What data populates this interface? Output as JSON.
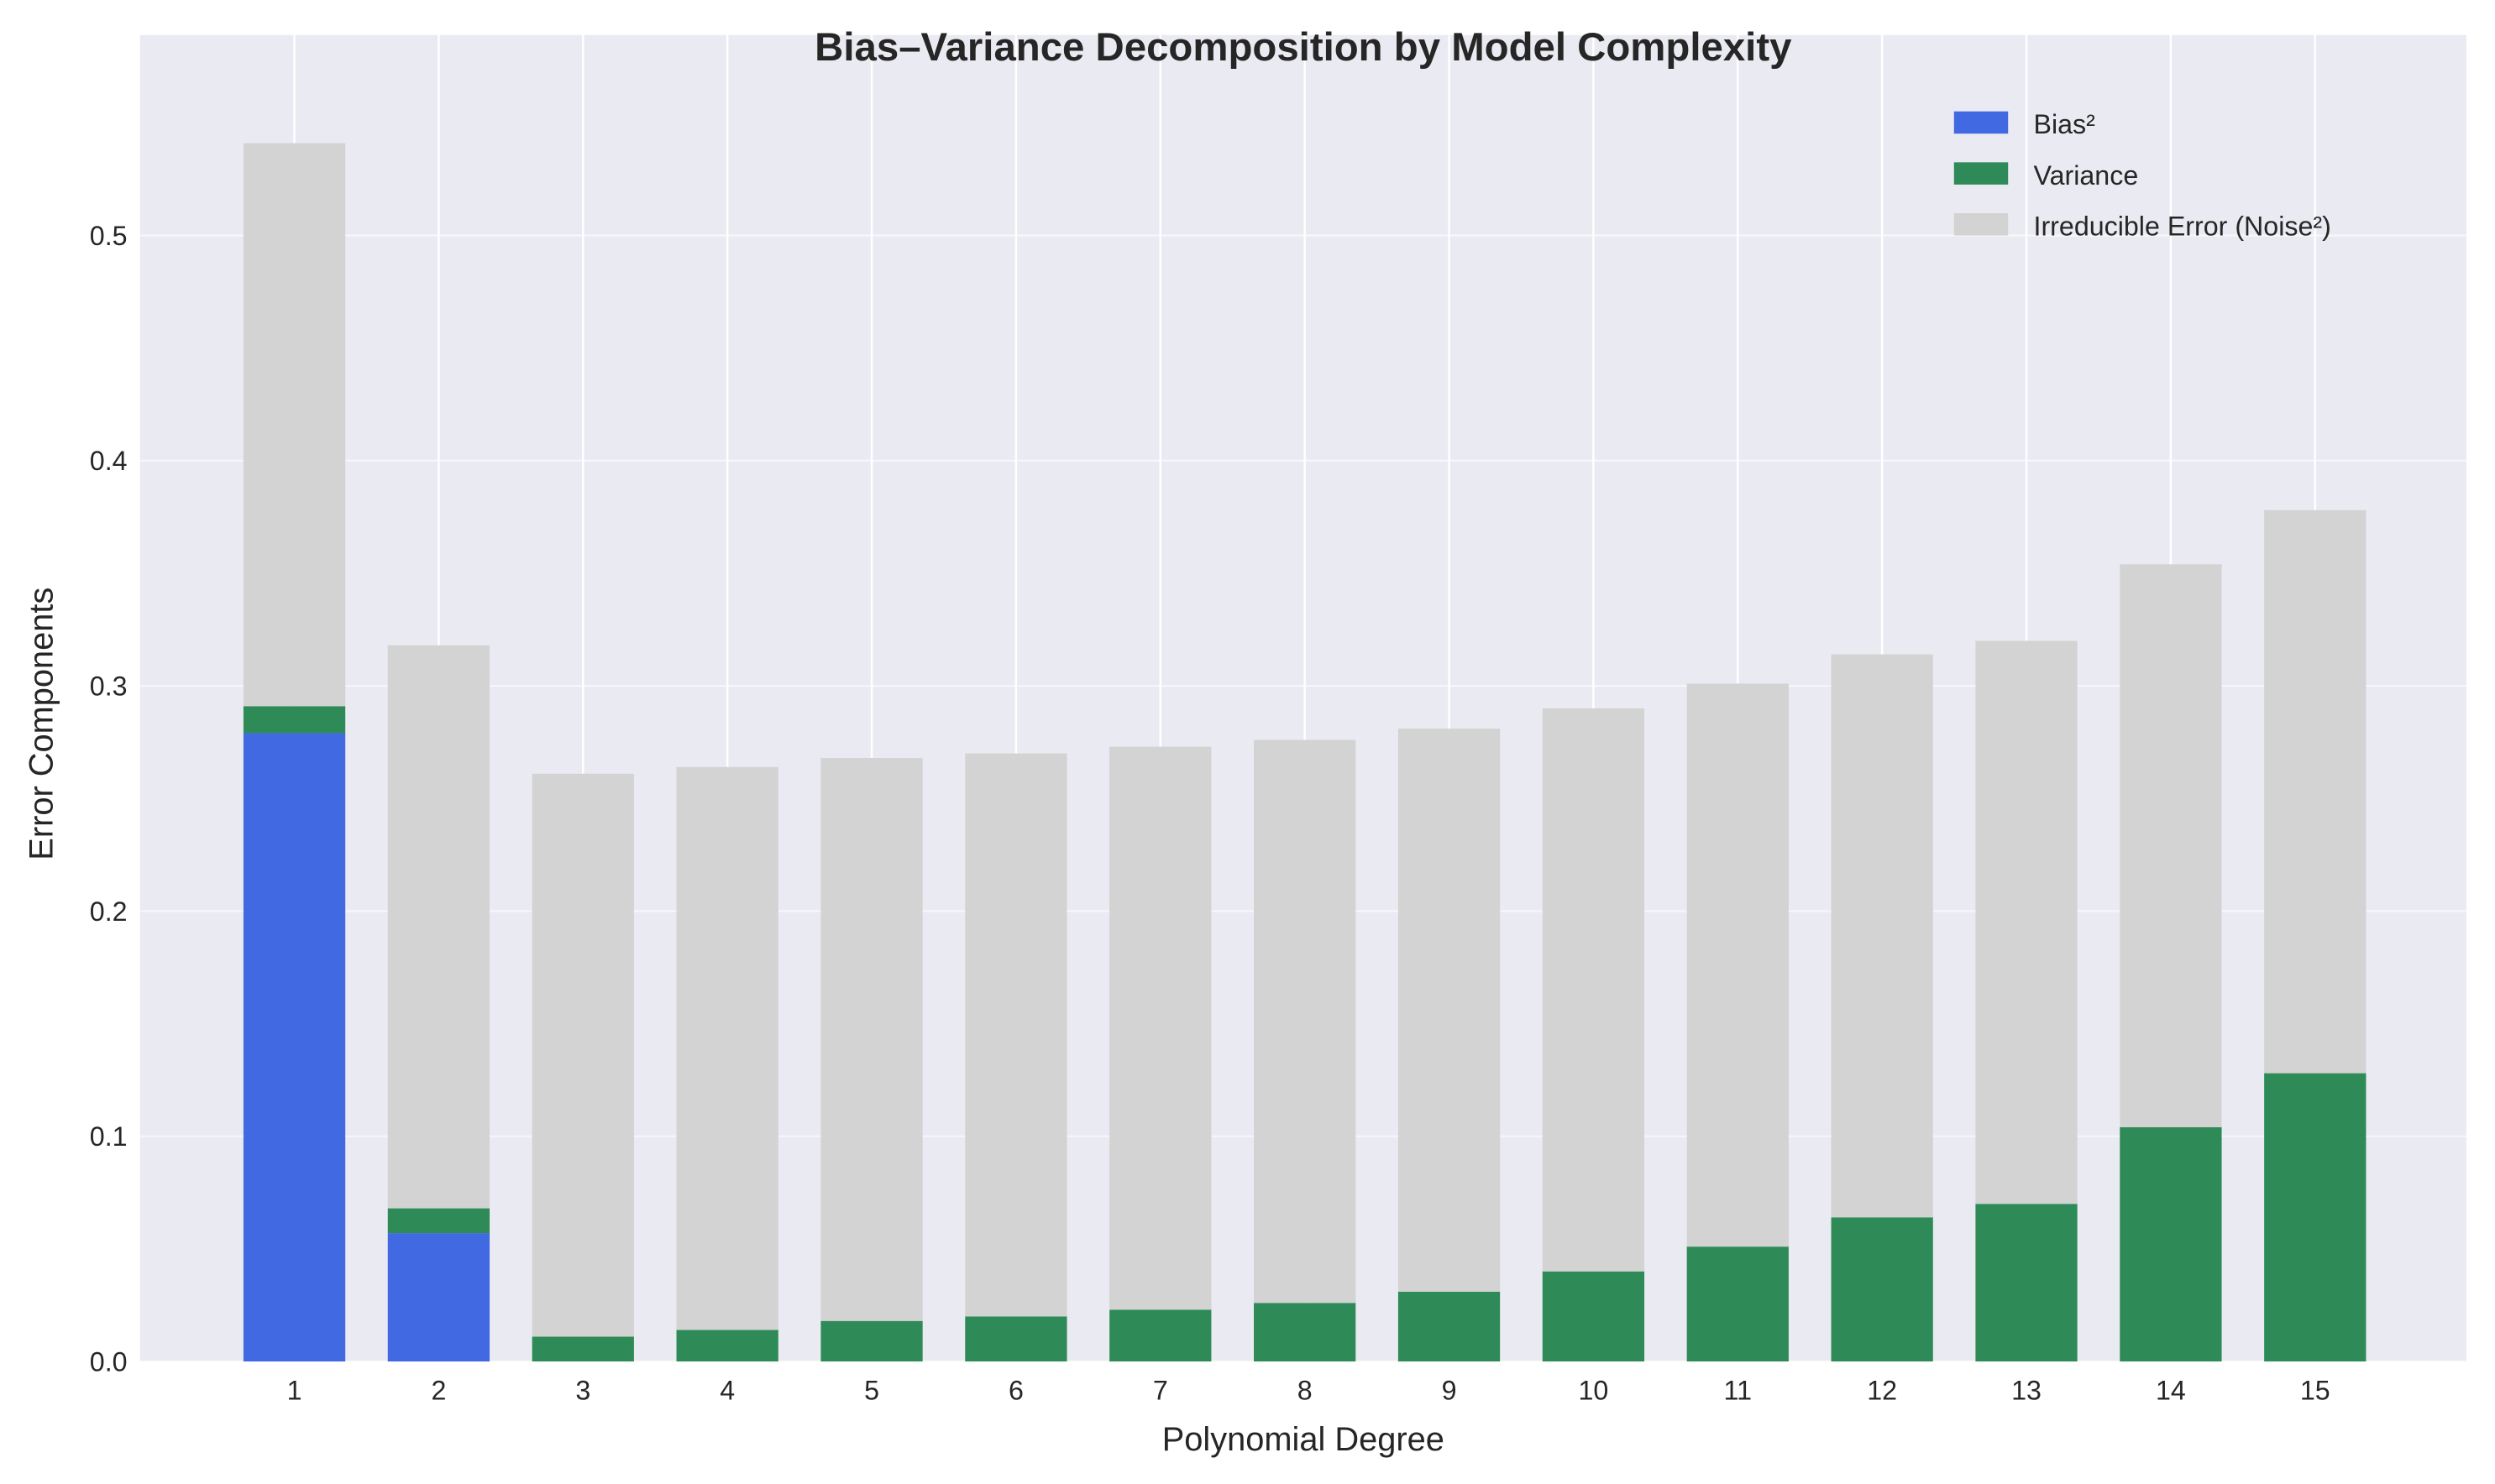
{
  "chart_data": {
    "type": "bar",
    "stacked": true,
    "title": "Bias–Variance Decomposition by Model Complexity",
    "xlabel": "Polynomial Degree",
    "ylabel": "Error Components",
    "categories": [
      "1",
      "2",
      "3",
      "4",
      "5",
      "6",
      "7",
      "8",
      "9",
      "10",
      "11",
      "12",
      "13",
      "14",
      "15"
    ],
    "ylim": [
      0,
      0.589
    ],
    "yticks": [
      "0.0",
      "0.1",
      "0.2",
      "0.3",
      "0.4",
      "0.5"
    ],
    "ytick_values": [
      0,
      0.1,
      0.2,
      0.3,
      0.4,
      0.5
    ],
    "grid": true,
    "legend_position": "top-right",
    "series": [
      {
        "name": "Bias²",
        "color": "#4169e1",
        "values": [
          0.279,
          0.057,
          0,
          0,
          0,
          0,
          0,
          0,
          0,
          0,
          0,
          0,
          0,
          0,
          0
        ]
      },
      {
        "name": "Variance",
        "color": "#2e8b57",
        "values": [
          0.012,
          0.011,
          0.011,
          0.014,
          0.018,
          0.02,
          0.023,
          0.026,
          0.031,
          0.04,
          0.051,
          0.064,
          0.07,
          0.104,
          0.128
        ]
      },
      {
        "name": "Irreducible Error (Noise²)",
        "color": "#d3d3d3",
        "values": [
          0.25,
          0.25,
          0.25,
          0.25,
          0.25,
          0.25,
          0.25,
          0.25,
          0.25,
          0.25,
          0.25,
          0.25,
          0.25,
          0.25,
          0.25
        ]
      }
    ]
  }
}
